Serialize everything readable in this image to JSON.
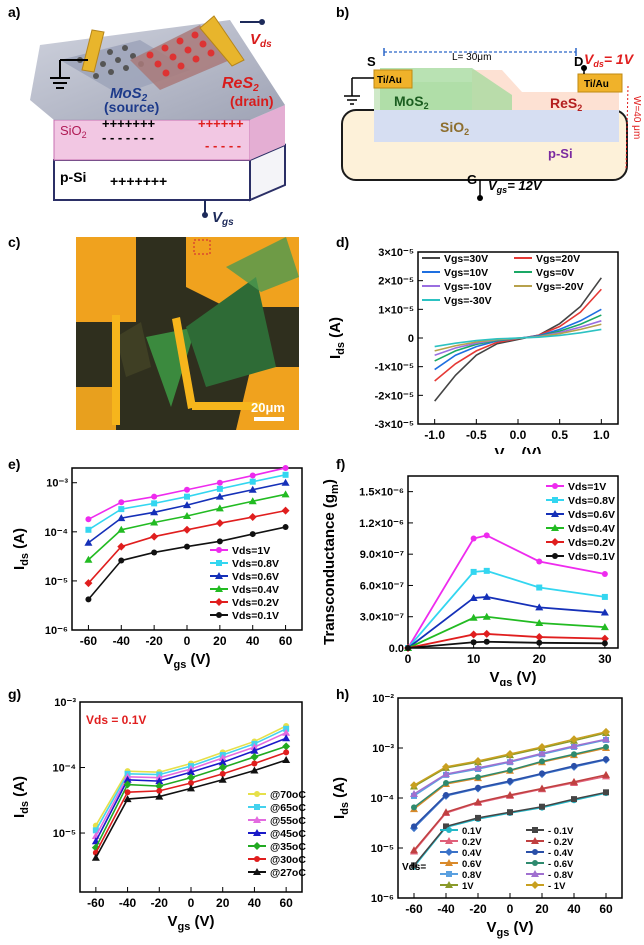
{
  "labels": {
    "a": "a)",
    "b": "b)",
    "c": "c)",
    "d": "d)",
    "e": "e)",
    "f": "f)",
    "g": "g)",
    "h": "h)"
  },
  "panel_a": {
    "vds": "V",
    "vds_sub": "ds",
    "vgs": "V",
    "vgs_sub": "gs",
    "mos2": "MoS",
    "mos2_sub": "2",
    "source": "(source)",
    "res2": "ReS",
    "res2_sub": "2",
    "drain": "(drain)",
    "sio2": "SiO",
    "sio2_sub": "2",
    "psi": "p-Si",
    "plus_top": "+++++++",
    "plus_red": "++++++",
    "minus_red": "- - - - -",
    "plus_bottom": "+++++++"
  },
  "panel_b": {
    "s": "S",
    "d": "D",
    "g": "G",
    "tiau1": "Ti/Au",
    "tiau2": "Ti/Au",
    "length": "L= 30μm",
    "vds": "V",
    "vds_sub": "ds",
    "vds_val": "= 1V",
    "width": "W=40 μm",
    "mos2": "MoS",
    "mos2_sub": "2",
    "res2": "ReS",
    "res2_sub": "2",
    "sio2": "SiO",
    "sio2_sub": "2",
    "psi": "p-Si",
    "vgs": "V",
    "vgs_sub": "gs",
    "vgs_val": "= 12V"
  },
  "panel_c": {
    "scale": "20μm"
  },
  "chart_data": [
    {
      "panel": "d",
      "type": "line",
      "xlabel": "V",
      "xlabel_sub": "ds",
      "xlabel_unit": " (V)",
      "ylabel": "I",
      "ylabel_sub": "ds",
      "ylabel_unit": " (A)",
      "xlim": [
        -1.2,
        1.2
      ],
      "ylim": [
        -3e-05,
        3e-05
      ],
      "xticks": [
        "-1.0",
        "-0.5",
        "0.0",
        "0.5",
        "1.0"
      ],
      "yticks": [
        "-3×10⁻⁵",
        "-2×10⁻⁵",
        "-1×10⁻⁵",
        "0",
        "1×10⁻⁵",
        "2×10⁻⁵",
        "3×10⁻⁵"
      ],
      "legend": [
        "Vgs=30V",
        "Vgs=-10V",
        "Vgs=20V",
        "Vgs=-20V",
        "Vgs=10V",
        "Vgs=-30V",
        "Vgs=0V"
      ],
      "series": [
        {
          "name": "Vgs=30V",
          "color": "#444444",
          "values": [
            -2.2e-05,
            -1.3e-05,
            -6e-06,
            -2e-06,
            1e-06,
            5e-06,
            1.1e-05,
            2.1e-05
          ]
        },
        {
          "name": "Vgs=20V",
          "color": "#e53935",
          "values": [
            -1.5e-05,
            -9e-06,
            -4.5e-06,
            -1.5e-06,
            1e-06,
            4e-06,
            9e-06,
            1.7e-05
          ]
        },
        {
          "name": "Vgs=10V",
          "color": "#1e6fe0",
          "values": [
            -1.1e-05,
            -6e-06,
            -3e-06,
            -1e-06,
            8e-07,
            3e-06,
            6e-06,
            1e-05
          ]
        },
        {
          "name": "Vgs=0V",
          "color": "#1aa865",
          "values": [
            -8e-06,
            -4.5e-06,
            -2.2e-06,
            -8e-07,
            6e-07,
            2.4e-06,
            4.8e-06,
            8e-06
          ]
        },
        {
          "name": "Vgs=-10V",
          "color": "#9a6ee0",
          "values": [
            -6e-06,
            -3.5e-06,
            -1.8e-06,
            -6e-07,
            5e-07,
            1.9e-06,
            3.8e-06,
            6e-06
          ]
        },
        {
          "name": "Vgs=-20V",
          "color": "#b7a14c",
          "values": [
            -4.5e-06,
            -2.7e-06,
            -1.4e-06,
            -5e-07,
            4e-07,
            1.5e-06,
            3e-06,
            4.8e-06
          ]
        },
        {
          "name": "Vgs=-30V",
          "color": "#2cc2c2",
          "values": [
            -3e-06,
            -1.8e-06,
            -9e-07,
            -3e-07,
            3e-07,
            9e-07,
            1.8e-06,
            3e-06
          ]
        }
      ],
      "x": [
        -1.0,
        -0.75,
        -0.5,
        -0.25,
        0.25,
        0.5,
        0.75,
        1.0
      ]
    },
    {
      "panel": "e",
      "type": "line",
      "xlabel": "V",
      "xlabel_sub": "gs",
      "xlabel_unit": " (V)",
      "ylabel": "I",
      "ylabel_sub": "ds",
      "ylabel_unit": " (A)",
      "xlim": [
        -70,
        70
      ],
      "ylim_log": [
        -6,
        -2.7
      ],
      "log": true,
      "xticks": [
        "-60",
        "-40",
        "-20",
        "0",
        "20",
        "40",
        "60"
      ],
      "yticks": [
        "10⁻⁶",
        "10⁻⁵",
        "10⁻⁴",
        "10⁻³"
      ],
      "x": [
        -60,
        -40,
        -20,
        0,
        20,
        40,
        60
      ],
      "series": [
        {
          "name": "Vds=1V",
          "color": "#ee2bee",
          "values": [
            0.00018,
            0.0004,
            0.00052,
            0.00072,
            0.001,
            0.0014,
            0.002
          ]
        },
        {
          "name": "Vds=0.8V",
          "color": "#33d6f0",
          "values": [
            0.00011,
            0.00029,
            0.00038,
            0.00052,
            0.00075,
            0.00105,
            0.00145
          ]
        },
        {
          "name": "Vds=0.6V",
          "color": "#1530b8",
          "values": [
            6e-05,
            0.00019,
            0.00025,
            0.00035,
            0.00052,
            0.00072,
            0.001
          ]
        },
        {
          "name": "Vds=0.4V",
          "color": "#22bb22",
          "values": [
            2.7e-05,
            0.00011,
            0.000155,
            0.00021,
            0.0003,
            0.00042,
            0.00058
          ]
        },
        {
          "name": "Vds=0.2V",
          "color": "#e01e1e",
          "values": [
            9e-06,
            5e-05,
            8e-05,
            0.00011,
            0.00015,
            0.0002,
            0.00027
          ]
        },
        {
          "name": "Vds=0.1V",
          "color": "#111111",
          "values": [
            4.2e-06,
            2.6e-05,
            3.8e-05,
            5e-05,
            6.4e-05,
            9e-05,
            0.000125
          ]
        }
      ]
    },
    {
      "panel": "f",
      "type": "line",
      "xlabel": "V",
      "xlabel_sub": "gs",
      "xlabel_unit": " (V)",
      "ylabel": "Transconductance (g",
      "ylabel_sub": "m",
      "ylabel_unit": ")",
      "xlim": [
        0,
        32
      ],
      "ylim": [
        0,
        1.65e-06
      ],
      "xticks": [
        "0",
        "10",
        "20",
        "30"
      ],
      "yticks": [
        "0.0",
        "3.0×10⁻⁷",
        "6.0×10⁻⁷",
        "9.0×10⁻⁷",
        "1.2×10⁻⁶",
        "1.5×10⁻⁶"
      ],
      "x": [
        0,
        10,
        12,
        20,
        30
      ],
      "series": [
        {
          "name": "Vds=1V",
          "color": "#ee2bee",
          "values": [
            0,
            1.05e-06,
            1.08e-06,
            8.3e-07,
            7.1e-07
          ]
        },
        {
          "name": "Vds=0.8V",
          "color": "#33d6f0",
          "values": [
            0,
            7.3e-07,
            7.4e-07,
            5.8e-07,
            4.9e-07
          ]
        },
        {
          "name": "Vds=0.6V",
          "color": "#1530b8",
          "values": [
            0,
            4.8e-07,
            4.9e-07,
            3.9e-07,
            3.4e-07
          ]
        },
        {
          "name": "Vds=0.4V",
          "color": "#22bb22",
          "values": [
            0,
            2.9e-07,
            3e-07,
            2.4e-07,
            2e-07
          ]
        },
        {
          "name": "Vds=0.2V",
          "color": "#e01e1e",
          "values": [
            0,
            1.3e-07,
            1.35e-07,
            1.05e-07,
            9e-08
          ]
        },
        {
          "name": "Vds=0.1V",
          "color": "#111111",
          "values": [
            0,
            5.5e-08,
            6e-08,
            5e-08,
            4.5e-08
          ]
        }
      ]
    },
    {
      "panel": "g",
      "type": "line",
      "annotation": "Vds = 0.1V",
      "xlabel": "V",
      "xlabel_sub": "gs",
      "xlabel_unit": " (V)",
      "ylabel": "I",
      "ylabel_sub": "ds",
      "ylabel_unit": " (A)",
      "xlim": [
        -70,
        70
      ],
      "ylim_log": [
        -5.9,
        -3
      ],
      "log": true,
      "xticks": [
        "-60",
        "-40",
        "-20",
        "0",
        "20",
        "40",
        "60"
      ],
      "yticks": [
        "10⁻⁵",
        "10⁻⁴",
        "10⁻³"
      ],
      "x": [
        -60,
        -40,
        -20,
        0,
        20,
        40,
        60
      ],
      "series": [
        {
          "name": "@70oC",
          "color": "#e6e04a",
          "values": [
            1.3e-05,
            8.8e-05,
            8.5e-05,
            0.000115,
            0.00017,
            0.00025,
            0.00043
          ]
        },
        {
          "name": "@65oC",
          "color": "#44d2ee",
          "values": [
            1.1e-05,
            8e-05,
            7.8e-05,
            0.000105,
            0.000155,
            0.00023,
            0.00039
          ]
        },
        {
          "name": "@55oC",
          "color": "#e36be0",
          "values": [
            9e-06,
            7.2e-05,
            7e-05,
            9.5e-05,
            0.00014,
            0.000205,
            0.00034
          ]
        },
        {
          "name": "@45oC",
          "color": "#1a1ac8",
          "values": [
            7.5e-06,
            6.5e-05,
            6.2e-05,
            8.5e-05,
            0.00012,
            0.00018,
            0.00028
          ]
        },
        {
          "name": "@35oC",
          "color": "#22aa22",
          "values": [
            6e-06,
            5.5e-05,
            5.2e-05,
            7e-05,
            0.0001,
            0.000145,
            0.00021
          ]
        },
        {
          "name": "@30oC",
          "color": "#e01e1e",
          "values": [
            5e-06,
            4.2e-05,
            4.4e-05,
            5.8e-05,
            8e-05,
            0.000115,
            0.00017
          ]
        },
        {
          "name": "@27oC",
          "color": "#111111",
          "values": [
            4.2e-06,
            3.3e-05,
            3.6e-05,
            4.8e-05,
            6.5e-05,
            9e-05,
            0.00013
          ]
        }
      ]
    },
    {
      "panel": "h",
      "type": "line",
      "xlabel": "V",
      "xlabel_sub": "gs",
      "xlabel_unit": " (V)",
      "ylabel": "I",
      "ylabel_sub": "ds",
      "ylabel_unit": " (A)",
      "xlim": [
        -70,
        70
      ],
      "ylim_log": [
        -6,
        -2
      ],
      "log": true,
      "xticks": [
        "-60",
        "-40",
        "-20",
        "0",
        "20",
        "40",
        "60"
      ],
      "yticks": [
        "10⁻⁶",
        "10⁻⁵",
        "10⁻⁴",
        "10⁻³",
        "10⁻²"
      ],
      "legend_prefix": "Vds=",
      "x": [
        -60,
        -40,
        -20,
        0,
        20,
        40,
        60
      ],
      "series": [
        {
          "name": "0.1V",
          "color": "#22b8c8",
          "values": [
            4.2e-06,
            2.6e-05,
            3.8e-05,
            5e-05,
            6.4e-05,
            9e-05,
            0.000125
          ]
        },
        {
          "name": "- 0.1V",
          "color": "#444444",
          "values": [
            4.5e-06,
            2.7e-05,
            4e-05,
            5.2e-05,
            6.7e-05,
            9.5e-05,
            0.00013
          ]
        },
        {
          "name": "0.2V",
          "color": "#e0607a",
          "values": [
            8.5e-06,
            5e-05,
            8e-05,
            0.00011,
            0.00015,
            0.0002,
            0.00027
          ]
        },
        {
          "name": "- 0.2V",
          "color": "#c04040",
          "values": [
            9e-06,
            5.2e-05,
            8.3e-05,
            0.000115,
            0.000155,
            0.00021,
            0.00029
          ]
        },
        {
          "name": "0.4V",
          "color": "#3a72c8",
          "values": [
            2.5e-05,
            0.00011,
            0.000155,
            0.00021,
            0.0003,
            0.00042,
            0.00058
          ]
        },
        {
          "name": "- 0.4V",
          "color": "#2a4fa8",
          "values": [
            2.7e-05,
            0.000115,
            0.00016,
            0.00022,
            0.00031,
            0.00044,
            0.0006
          ]
        },
        {
          "name": "0.6V",
          "color": "#d98a2a",
          "values": [
            6e-05,
            0.00019,
            0.00025,
            0.00035,
            0.00052,
            0.00072,
            0.001
          ]
        },
        {
          "name": "- 0.6V",
          "color": "#2e8a6e",
          "values": [
            6.5e-05,
            0.0002,
            0.00026,
            0.00036,
            0.00054,
            0.00075,
            0.00105
          ]
        },
        {
          "name": "0.8V",
          "color": "#5aa0e0",
          "values": [
            0.00011,
            0.00029,
            0.00038,
            0.00052,
            0.00075,
            0.00105,
            0.00145
          ]
        },
        {
          "name": "- 0.8V",
          "color": "#a070d0",
          "values": [
            0.00012,
            0.0003,
            0.0004,
            0.00054,
            0.00078,
            0.0011,
            0.0015
          ]
        },
        {
          "name": "1V",
          "color": "#8a9a2a",
          "values": [
            0.00017,
            0.0004,
            0.00052,
            0.00072,
            0.001,
            0.0014,
            0.002
          ]
        },
        {
          "name": "- 1V",
          "color": "#c8a020",
          "values": [
            0.00018,
            0.00042,
            0.00055,
            0.00076,
            0.00105,
            0.0015,
            0.0021
          ]
        }
      ]
    }
  ]
}
